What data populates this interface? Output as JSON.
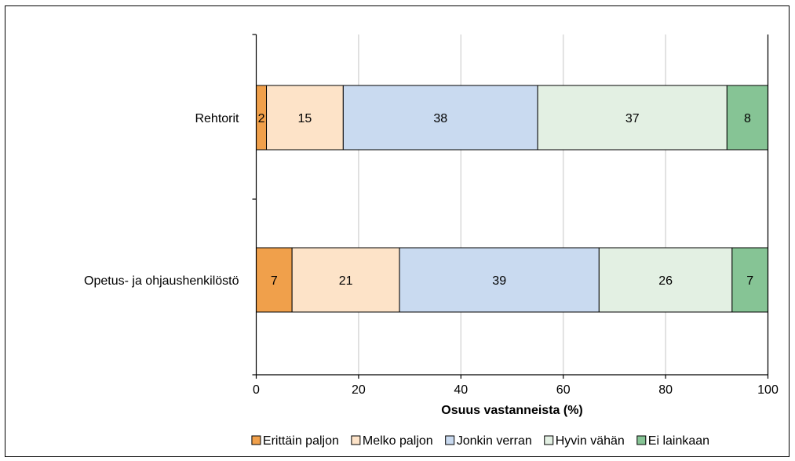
{
  "chart_data": {
    "type": "bar",
    "orientation": "horizontal",
    "stacked": true,
    "categories": [
      "Rehtorit",
      "Opetus- ja ohjaushenkilöstö"
    ],
    "series": [
      {
        "name": "Erittäin paljon",
        "values": [
          2,
          7
        ],
        "color": "#f0a04b"
      },
      {
        "name": "Melko paljon",
        "values": [
          15,
          21
        ],
        "color": "#fde3c8"
      },
      {
        "name": "Jonkin verran",
        "values": [
          38,
          39
        ],
        "color": "#c9daf0"
      },
      {
        "name": "Hyvin vähän",
        "values": [
          37,
          26
        ],
        "color": "#e3f0e3"
      },
      {
        "name": "Ei lainkaan",
        "values": [
          8,
          7
        ],
        "color": "#86c495"
      }
    ],
    "data_labels": [
      [
        "2",
        "15",
        "38",
        "37",
        "8"
      ],
      [
        "7",
        "21",
        "39",
        "26",
        "7"
      ]
    ],
    "xlabel": "Osuus vastanneista (%)",
    "xlim": [
      0,
      100
    ],
    "xticks": [
      0,
      20,
      40,
      60,
      80,
      100
    ],
    "xtick_labels": [
      "0",
      "20",
      "40",
      "60",
      "80",
      "100"
    ],
    "grid": "vertical",
    "legend_position": "bottom"
  }
}
